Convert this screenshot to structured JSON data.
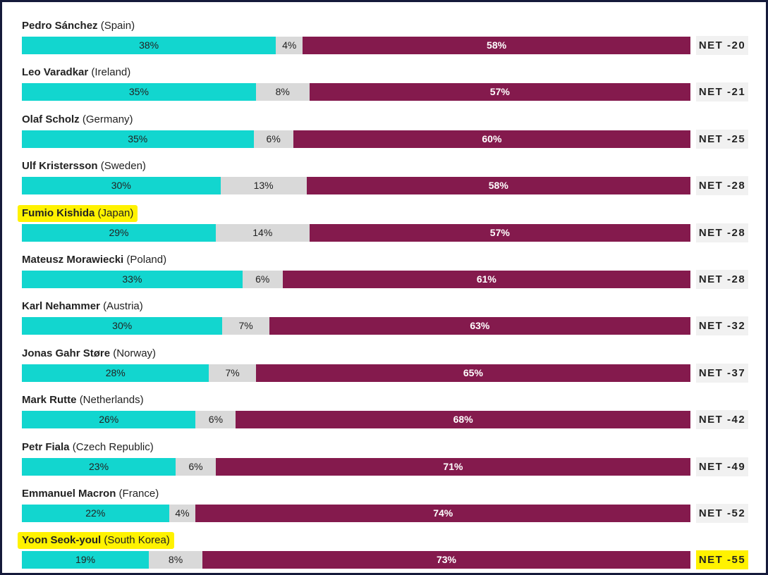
{
  "chart_data": {
    "type": "bar",
    "orientation": "horizontal",
    "stacked": true,
    "title": "",
    "xlabel": "",
    "ylabel": "",
    "xlim": [
      0,
      100
    ],
    "segments": [
      "approve",
      "dont_know",
      "disapprove"
    ],
    "colors": {
      "approve": "#12d6cf",
      "dont_know": "#d9d9d9",
      "disapprove": "#841a4d",
      "highlight": "#fff200"
    },
    "rows": [
      {
        "leader": "Pedro Sánchez",
        "country": "(Spain)",
        "approve": 38,
        "approve_label": "38%",
        "dont_know": 4,
        "dont_know_label": "4%",
        "disapprove": 58,
        "disapprove_label": "58%",
        "net": "NET -20",
        "highlight_name": false,
        "highlight_net": false
      },
      {
        "leader": "Leo Varadkar",
        "country": "(Ireland)",
        "approve": 35,
        "approve_label": "35%",
        "dont_know": 8,
        "dont_know_label": "8%",
        "disapprove": 57,
        "disapprove_label": "57%",
        "net": "NET -21",
        "highlight_name": false,
        "highlight_net": false
      },
      {
        "leader": "Olaf Scholz",
        "country": "(Germany)",
        "approve": 35,
        "approve_label": "35%",
        "dont_know": 6,
        "dont_know_label": "6%",
        "disapprove": 60,
        "disapprove_label": "60%",
        "net": "NET -25",
        "highlight_name": false,
        "highlight_net": false
      },
      {
        "leader": "Ulf Kristersson",
        "country": "(Sweden)",
        "approve": 30,
        "approve_label": "30%",
        "dont_know": 13,
        "dont_know_label": "13%",
        "disapprove": 58,
        "disapprove_label": "58%",
        "net": "NET -28",
        "highlight_name": false,
        "highlight_net": false
      },
      {
        "leader": "Fumio Kishida",
        "country": "(Japan)",
        "approve": 29,
        "approve_label": "29%",
        "dont_know": 14,
        "dont_know_label": "14%",
        "disapprove": 57,
        "disapprove_label": "57%",
        "net": "NET -28",
        "highlight_name": true,
        "highlight_net": false
      },
      {
        "leader": "Mateusz Morawiecki",
        "country": "(Poland)",
        "approve": 33,
        "approve_label": "33%",
        "dont_know": 6,
        "dont_know_label": "6%",
        "disapprove": 61,
        "disapprove_label": "61%",
        "net": "NET -28",
        "highlight_name": false,
        "highlight_net": false
      },
      {
        "leader": "Karl Nehammer",
        "country": "(Austria)",
        "approve": 30,
        "approve_label": "30%",
        "dont_know": 7,
        "dont_know_label": "7%",
        "disapprove": 63,
        "disapprove_label": "63%",
        "net": "NET -32",
        "highlight_name": false,
        "highlight_net": false
      },
      {
        "leader": "Jonas Gahr Støre",
        "country": "(Norway)",
        "approve": 28,
        "approve_label": "28%",
        "dont_know": 7,
        "dont_know_label": "7%",
        "disapprove": 65,
        "disapprove_label": "65%",
        "net": "NET -37",
        "highlight_name": false,
        "highlight_net": false
      },
      {
        "leader": "Mark Rutte",
        "country": "(Netherlands)",
        "approve": 26,
        "approve_label": "26%",
        "dont_know": 6,
        "dont_know_label": "6%",
        "disapprove": 68,
        "disapprove_label": "68%",
        "net": "NET -42",
        "highlight_name": false,
        "highlight_net": false
      },
      {
        "leader": "Petr Fiala",
        "country": "(Czech Republic)",
        "approve": 23,
        "approve_label": "23%",
        "dont_know": 6,
        "dont_know_label": "6%",
        "disapprove": 71,
        "disapprove_label": "71%",
        "net": "NET -49",
        "highlight_name": false,
        "highlight_net": false
      },
      {
        "leader": "Emmanuel Macron",
        "country": "(France)",
        "approve": 22,
        "approve_label": "22%",
        "dont_know": 4,
        "dont_know_label": "4%",
        "disapprove": 74,
        "disapprove_label": "74%",
        "net": "NET -52",
        "highlight_name": false,
        "highlight_net": false
      },
      {
        "leader": "Yoon Seok-youl",
        "country": "(South Korea)",
        "approve": 19,
        "approve_label": "19%",
        "dont_know": 8,
        "dont_know_label": "8%",
        "disapprove": 73,
        "disapprove_label": "73%",
        "net": "NET -55",
        "highlight_name": true,
        "highlight_net": true
      }
    ]
  }
}
